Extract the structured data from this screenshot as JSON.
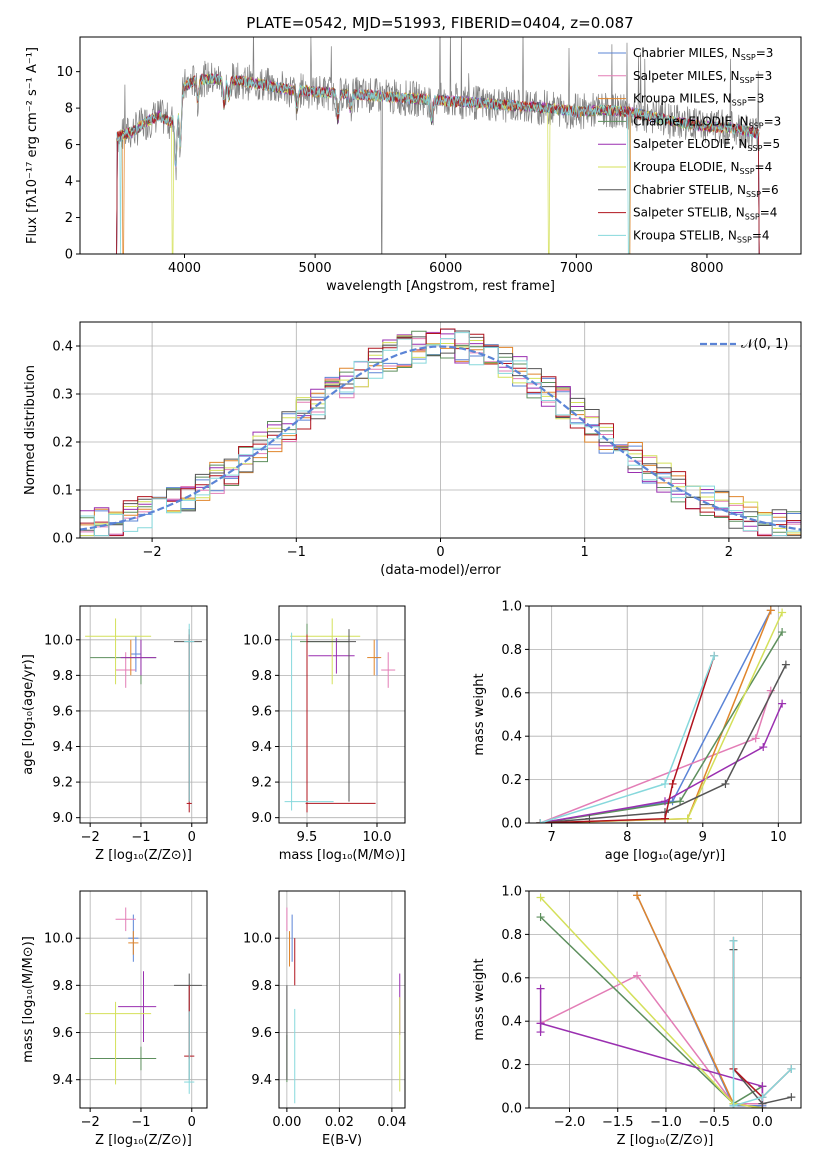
{
  "figure": {
    "title": "PLATE=0542, MJD=51993, FIBERID=0404, z=0.087"
  },
  "colors": {
    "Chabrier MILES": "#5b84d6",
    "Salpeter MILES": "#e37db6",
    "Kroupa MILES": "#e0852b",
    "Chabrier ELODIE": "#5d8f5d",
    "Salpeter ELODIE": "#9a2fb0",
    "Kroupa ELODIE": "#d4e05a",
    "Chabrier STELIB": "#555555",
    "Salpeter STELIB": "#b0141e",
    "Kroupa STELIB": "#86d8dc",
    "observed": "#808080",
    "normal": "#5b84d6"
  },
  "chart_data": [
    {
      "id": "spectrum",
      "type": "line",
      "title": "PLATE=0542, MJD=51993, FIBERID=0404, z=0.087",
      "xlabel": "wavelength [Angstrom, rest frame]",
      "ylabel": "Flux [fλ10⁻¹⁷ erg cm⁻² s⁻¹ A⁻¹]",
      "xlim": [
        3200,
        8720
      ],
      "ylim": [
        0,
        11.9
      ],
      "xticks": [
        4000,
        5000,
        6000,
        7000,
        8000
      ],
      "yticks": [
        0,
        2,
        4,
        6,
        8,
        10
      ],
      "grid": false,
      "legend_position": "top-right",
      "legend": [
        "Chabrier MILES, N_SSP=3",
        "Salpeter MILES, N_SSP=3",
        "Kroupa MILES, N_SSP=3",
        "Chabrier ELODIE, N_SSP=3",
        "Salpeter ELODIE, N_SSP=5",
        "Kroupa ELODIE, N_SSP=4",
        "Chabrier STELIB, N_SSP=6",
        "Salpeter STELIB, N_SSP=4",
        "Kroupa STELIB, N_SSP=4"
      ],
      "continuum": {
        "x": [
          3480,
          3600,
          3700,
          3800,
          3900,
          4000,
          4100,
          4200,
          4400,
          4600,
          4800,
          5000,
          5200,
          5400,
          5600,
          5800,
          6000,
          6200,
          6400,
          6600,
          6800,
          7000,
          7200,
          7400,
          7600,
          7800,
          8000,
          8200,
          8400
        ],
        "y": [
          6.4,
          6.7,
          7.2,
          7.6,
          7.2,
          9.2,
          9.6,
          9.6,
          9.5,
          9.3,
          9.0,
          8.9,
          8.8,
          8.7,
          8.6,
          8.5,
          8.4,
          8.3,
          8.2,
          8.1,
          8.0,
          7.8,
          7.9,
          7.8,
          7.5,
          7.2,
          7.0,
          6.9,
          6.6
        ]
      },
      "absorption_lines": [
        {
          "x": 3934,
          "depth": 3.0
        },
        {
          "x": 3968,
          "depth": 2.5
        },
        {
          "x": 4102,
          "depth": 1.2
        },
        {
          "x": 4304,
          "depth": 1.4
        },
        {
          "x": 4340,
          "depth": 1.0
        },
        {
          "x": 4861,
          "depth": 1.0
        },
        {
          "x": 5175,
          "depth": 1.5
        },
        {
          "x": 5270,
          "depth": 0.8
        },
        {
          "x": 5893,
          "depth": 1.2
        }
      ],
      "model_edges": {
        "Kroupa MILES": [
          3530,
          7410
        ],
        "Kroupa ELODIE": [
          3910,
          6790
        ],
        "Kroupa STELIB": [
          3510,
          7400
        ]
      },
      "observed_drop": {
        "x": 5510,
        "y": 0
      }
    },
    {
      "id": "residuals",
      "type": "histogram",
      "xlabel": "(data-model)/error",
      "ylabel": "Normed distribution",
      "xlim": [
        -2.5,
        2.5
      ],
      "ylim": [
        0,
        0.45
      ],
      "xticks": [
        -2,
        -1,
        0,
        1,
        2
      ],
      "yticks": [
        0.0,
        0.1,
        0.2,
        0.3,
        0.4
      ],
      "grid": true,
      "legend_position": "top-right",
      "legend": [
        "𝒩(0, 1)"
      ],
      "bin_width": 0.1,
      "normal_mean": 0,
      "normal_std": 1
    },
    {
      "id": "age_vs_Z",
      "type": "errorbar",
      "xlabel": "Z [log₁₀(Z/Z⊙)]",
      "ylabel": "age  [log₁₀(age/yr)]",
      "xlim": [
        -2.2,
        0.3
      ],
      "ylim": [
        8.97,
        10.19
      ],
      "xticks": [
        -2,
        -1,
        0
      ],
      "yticks": [
        9.0,
        9.2,
        9.4,
        9.6,
        9.8,
        10.0
      ],
      "grid": true,
      "points": [
        {
          "model": "Chabrier MILES",
          "x": -1.1,
          "y": 9.92,
          "xerr": [
            0.1,
            0.1
          ],
          "yerr": [
            0.1,
            0.1
          ]
        },
        {
          "model": "Salpeter MILES",
          "x": -1.3,
          "y": 9.83,
          "xerr": [
            0.2,
            0.2
          ],
          "yerr": [
            0.1,
            0.1
          ]
        },
        {
          "model": "Kroupa MILES",
          "x": -1.2,
          "y": 9.9,
          "xerr": [
            0.1,
            0.1
          ],
          "yerr": [
            0.1,
            0.1
          ]
        },
        {
          "model": "Chabrier ELODIE",
          "x": -1.0,
          "y": 9.9,
          "xerr": [
            1.0,
            0.3
          ],
          "yerr": [
            0.15,
            0.1
          ]
        },
        {
          "model": "Salpeter ELODIE",
          "x": -1.0,
          "y": 9.9,
          "xerr": [
            0.4,
            0.3
          ],
          "yerr": [
            0.1,
            0.1
          ]
        },
        {
          "model": "Kroupa ELODIE",
          "x": -1.5,
          "y": 10.02,
          "xerr": [
            0.6,
            0.7
          ],
          "yerr": [
            0.27,
            0.1
          ]
        },
        {
          "model": "Chabrier STELIB",
          "x": -0.05,
          "y": 9.99,
          "xerr": [
            0.3,
            0.25
          ],
          "yerr": [
            0.9,
            0.07
          ]
        },
        {
          "model": "Salpeter STELIB",
          "x": -0.05,
          "y": 9.08,
          "xerr": [
            0.05,
            0.05
          ],
          "yerr": [
            0.05,
            0.95
          ]
        },
        {
          "model": "Kroupa STELIB",
          "x": -0.05,
          "y": 9.99,
          "xerr": [
            0.1,
            0.1
          ],
          "yerr": [
            0.9,
            0.1
          ]
        }
      ]
    },
    {
      "id": "age_vs_mass",
      "type": "errorbar",
      "xlabel": "mass [log₁₀(M/M⊙)]",
      "ylabel": "",
      "xlim": [
        9.3,
        10.2
      ],
      "ylim": [
        8.97,
        10.19
      ],
      "xticks": [
        9.5,
        10.0
      ],
      "yticks": [
        9.0,
        9.2,
        9.4,
        9.6,
        9.8,
        10.0
      ],
      "grid": true,
      "points": [
        {
          "model": "Chabrier MILES",
          "x": 10.0,
          "y": 9.9,
          "xerr": [
            0.02,
            0.02
          ],
          "yerr": [
            0.1,
            0.1
          ]
        },
        {
          "model": "Salpeter MILES",
          "x": 10.08,
          "y": 9.83,
          "xerr": [
            0.05,
            0.05
          ],
          "yerr": [
            0.1,
            0.1
          ]
        },
        {
          "model": "Kroupa MILES",
          "x": 9.98,
          "y": 9.9,
          "xerr": [
            0.05,
            0.05
          ],
          "yerr": [
            0.1,
            0.1
          ]
        },
        {
          "model": "Chabrier ELODIE",
          "x": 9.5,
          "y": 9.99,
          "xerr": [
            0.05,
            0.3
          ],
          "yerr": [
            0.1,
            0.1
          ]
        },
        {
          "model": "Salpeter ELODIE",
          "x": 9.71,
          "y": 9.91,
          "xerr": [
            0.2,
            0.13
          ],
          "yerr": [
            0.1,
            0.1
          ]
        },
        {
          "model": "Kroupa ELODIE",
          "x": 9.68,
          "y": 10.02,
          "xerr": [
            0.3,
            0.2
          ],
          "yerr": [
            0.27,
            0.1
          ]
        },
        {
          "model": "Chabrier STELIB",
          "x": 9.8,
          "y": 9.99,
          "xerr": [
            0.3,
            0.05
          ],
          "yerr": [
            0.9,
            0.07
          ]
        },
        {
          "model": "Salpeter STELIB",
          "x": 9.5,
          "y": 9.08,
          "xerr": [
            0.01,
            0.49
          ],
          "yerr": [
            0.05,
            0.95
          ]
        },
        {
          "model": "Kroupa STELIB",
          "x": 9.39,
          "y": 9.09,
          "xerr": [
            0.05,
            0.3
          ],
          "yerr": [
            0.05,
            0.95
          ]
        }
      ]
    },
    {
      "id": "massweight_vs_age",
      "type": "line",
      "xlabel": "age  [log₁₀(age/yr)]",
      "ylabel": "mass weight",
      "xlim": [
        6.7,
        10.3
      ],
      "ylim": [
        0,
        1.0
      ],
      "xticks": [
        7,
        8,
        9,
        10
      ],
      "yticks": [
        0.0,
        0.2,
        0.4,
        0.6,
        0.8,
        1.0
      ],
      "grid": true,
      "series": [
        {
          "name": "Chabrier MILES",
          "x": [
            6.85,
            8.6,
            9.9
          ],
          "y": [
            0.0,
            0.1,
            0.98
          ]
        },
        {
          "name": "Salpeter MILES",
          "x": [
            6.85,
            9.7,
            9.9
          ],
          "y": [
            0.0,
            0.39,
            0.61
          ]
        },
        {
          "name": "Kroupa MILES",
          "x": [
            6.85,
            8.8,
            9.9
          ],
          "y": [
            0.0,
            0.02,
            0.98
          ]
        },
        {
          "name": "Chabrier ELODIE",
          "x": [
            6.85,
            8.7,
            10.05
          ],
          "y": [
            0.0,
            0.1,
            0.88
          ]
        },
        {
          "name": "Salpeter ELODIE",
          "x": [
            6.85,
            8.5,
            9.8,
            10.05
          ],
          "y": [
            0.0,
            0.1,
            0.35,
            0.55
          ]
        },
        {
          "name": "Kroupa ELODIE",
          "x": [
            6.85,
            8.8,
            10.05
          ],
          "y": [
            0.0,
            0.02,
            0.97
          ]
        },
        {
          "name": "Chabrier STELIB",
          "x": [
            6.85,
            7.5,
            8.5,
            9.3,
            10.1
          ],
          "y": [
            0.0,
            0.02,
            0.05,
            0.18,
            0.73
          ]
        },
        {
          "name": "Salpeter STELIB",
          "x": [
            6.85,
            8.5,
            8.6,
            9.15
          ],
          "y": [
            0.0,
            0.02,
            0.18,
            0.77
          ]
        },
        {
          "name": "Kroupa STELIB",
          "x": [
            6.85,
            8.5,
            9.15
          ],
          "y": [
            0.0,
            0.18,
            0.77
          ]
        }
      ]
    },
    {
      "id": "mass_vs_Z",
      "type": "errorbar",
      "xlabel": "Z [log₁₀(Z/Z⊙)]",
      "ylabel": "mass [log₁₀(M/M⊙)]",
      "xlim": [
        -2.2,
        0.3
      ],
      "ylim": [
        9.28,
        10.2
      ],
      "xticks": [
        -2,
        -1,
        0
      ],
      "yticks": [
        9.4,
        9.6,
        9.8,
        10.0
      ],
      "grid": true,
      "points": [
        {
          "model": "Chabrier MILES",
          "x": -1.15,
          "y": 10.0,
          "xerr": [
            0.1,
            0.1
          ],
          "yerr": [
            0.1,
            0.1
          ]
        },
        {
          "model": "Salpeter MILES",
          "x": -1.3,
          "y": 10.08,
          "xerr": [
            0.2,
            0.2
          ],
          "yerr": [
            0.05,
            0.05
          ]
        },
        {
          "model": "Kroupa MILES",
          "x": -1.15,
          "y": 9.98,
          "xerr": [
            0.1,
            0.1
          ],
          "yerr": [
            0.05,
            0.05
          ]
        },
        {
          "model": "Chabrier ELODIE",
          "x": -1.0,
          "y": 9.49,
          "xerr": [
            1.0,
            0.3
          ],
          "yerr": [
            0.05,
            0.05
          ]
        },
        {
          "model": "Salpeter ELODIE",
          "x": -0.95,
          "y": 9.71,
          "xerr": [
            0.5,
            0.25
          ],
          "yerr": [
            0.15,
            0.15
          ]
        },
        {
          "model": "Kroupa ELODIE",
          "x": -1.5,
          "y": 9.68,
          "xerr": [
            0.6,
            0.7
          ],
          "yerr": [
            0.3,
            0.05
          ]
        },
        {
          "model": "Chabrier STELIB",
          "x": -0.05,
          "y": 9.8,
          "xerr": [
            0.3,
            0.25
          ],
          "yerr": [
            0.4,
            0.05
          ]
        },
        {
          "model": "Salpeter STELIB",
          "x": -0.05,
          "y": 9.5,
          "xerr": [
            0.1,
            0.1
          ],
          "yerr": [
            0.01,
            0.3
          ]
        },
        {
          "model": "Kroupa STELIB",
          "x": -0.05,
          "y": 9.39,
          "xerr": [
            0.1,
            0.1
          ],
          "yerr": [
            0.05,
            0.3
          ]
        }
      ]
    },
    {
      "id": "mass_vs_EBV",
      "type": "errorbar",
      "xlabel": "E(B-V)",
      "ylabel": "",
      "xlim": [
        -0.003,
        0.045
      ],
      "ylim": [
        9.28,
        10.2
      ],
      "xticks": [
        0.0,
        0.02,
        0.04
      ],
      "yticks": [
        9.4,
        9.6,
        9.8,
        10.0
      ],
      "grid": true,
      "points": [
        {
          "model": "Chabrier MILES",
          "x": 0.002,
          "y": 10.0,
          "xerr": [
            0,
            0
          ],
          "yerr": [
            0.1,
            0.1
          ]
        },
        {
          "model": "Salpeter MILES",
          "x": 0.0,
          "y": 10.08,
          "xerr": [
            0,
            0
          ],
          "yerr": [
            0.05,
            0.05
          ]
        },
        {
          "model": "Kroupa MILES",
          "x": 0.001,
          "y": 9.98,
          "xerr": [
            0,
            0
          ],
          "yerr": [
            0.1,
            0.05
          ]
        },
        {
          "model": "Chabrier ELODIE",
          "x": 0.0,
          "y": 9.49,
          "xerr": [
            0,
            0
          ],
          "yerr": [
            0.1,
            0.1
          ]
        },
        {
          "model": "Salpeter ELODIE",
          "x": 0.043,
          "y": 9.72,
          "xerr": [
            0,
            0
          ],
          "yerr": [
            0.13,
            0.13
          ]
        },
        {
          "model": "Kroupa ELODIE",
          "x": 0.043,
          "y": 9.55,
          "xerr": [
            0,
            0
          ],
          "yerr": [
            0.2,
            0.2
          ]
        },
        {
          "model": "Chabrier STELIB",
          "x": 0.0,
          "y": 9.6,
          "xerr": [
            0,
            0
          ],
          "yerr": [
            0.2,
            0.2
          ]
        },
        {
          "model": "Salpeter STELIB",
          "x": 0.003,
          "y": 9.9,
          "xerr": [
            0,
            0
          ],
          "yerr": [
            0.1,
            0.1
          ]
        },
        {
          "model": "Kroupa STELIB",
          "x": 0.003,
          "y": 9.5,
          "xerr": [
            0,
            0
          ],
          "yerr": [
            0.2,
            0.2
          ]
        }
      ]
    },
    {
      "id": "massweight_vs_Z",
      "type": "line",
      "xlabel": "Z [log₁₀(Z/Z⊙)]",
      "ylabel": "mass weight",
      "xlim": [
        -2.42,
        0.4
      ],
      "ylim": [
        0,
        1.0
      ],
      "xticks": [
        -2.0,
        -1.5,
        -1.0,
        -0.5,
        0.0
      ],
      "xtick_labels": [
        "−2.0",
        "−1.5",
        "−1.0",
        "−0.5",
        "0.0"
      ],
      "yticks": [
        0.0,
        0.2,
        0.4,
        0.6,
        0.8,
        1.0
      ],
      "grid": true,
      "series": [
        {
          "name": "Chabrier MILES",
          "x": [
            -1.3,
            -0.3,
            0.0
          ],
          "y": [
            0.98,
            0.01,
            0.01
          ]
        },
        {
          "name": "Salpeter MILES",
          "x": [
            -2.3,
            -1.3,
            -0.3,
            0.0,
            0.0
          ],
          "y": [
            0.39,
            0.61,
            0.02,
            0.02,
            0.1
          ]
        },
        {
          "name": "Kroupa MILES",
          "x": [
            -1.3,
            -0.3,
            0.0
          ],
          "y": [
            0.98,
            0.02,
            0.0
          ]
        },
        {
          "name": "Chabrier ELODIE",
          "x": [
            -2.3,
            -0.3,
            0.0
          ],
          "y": [
            0.88,
            0.02,
            0.1
          ]
        },
        {
          "name": "Salpeter ELODIE",
          "x": [
            -2.3,
            -2.3,
            -2.3,
            0.0,
            0.0
          ],
          "y": [
            0.55,
            0.35,
            0.39,
            0.1,
            0.0
          ]
        },
        {
          "name": "Kroupa ELODIE",
          "x": [
            -2.3,
            -0.3,
            0.0
          ],
          "y": [
            0.97,
            0.02,
            0.0
          ]
        },
        {
          "name": "Chabrier STELIB",
          "x": [
            -0.3,
            -0.3,
            0.0,
            0.3
          ],
          "y": [
            0.73,
            0.18,
            0.02,
            0.05
          ]
        },
        {
          "name": "Salpeter STELIB",
          "x": [
            -0.3,
            -0.3,
            0.0,
            0.3
          ],
          "y": [
            0.77,
            0.18,
            0.05,
            0.18
          ]
        },
        {
          "name": "Kroupa STELIB",
          "x": [
            -0.3,
            -0.3,
            0.0,
            0.3
          ],
          "y": [
            0.77,
            0.01,
            0.05,
            0.18
          ]
        }
      ]
    }
  ]
}
